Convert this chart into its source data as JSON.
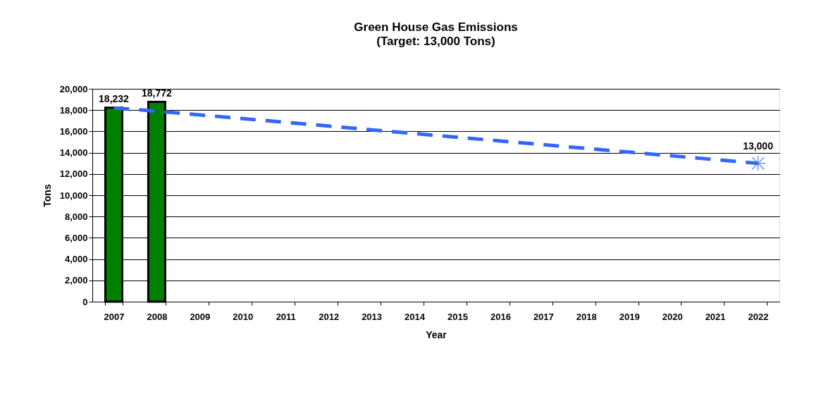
{
  "chart_data": {
    "type": "bar",
    "title": "Green House Gas Emissions",
    "subtitle": "(Target: 13,000 Tons)",
    "xlabel": "Year",
    "ylabel": "Tons",
    "categories": [
      "2007",
      "2008",
      "2009",
      "2010",
      "2011",
      "2012",
      "2013",
      "2014",
      "2015",
      "2016",
      "2017",
      "2018",
      "2019",
      "2020",
      "2021",
      "2022"
    ],
    "series": [
      {
        "color": "#008000",
        "values": [
          18232,
          18772,
          null,
          null,
          null,
          null,
          null,
          null,
          null,
          null,
          null,
          null,
          null,
          null,
          null,
          null
        ],
        "value_labels": [
          "18,232",
          "18,772",
          null,
          null,
          null,
          null,
          null,
          null,
          null,
          null,
          null,
          null,
          null,
          null,
          null,
          null
        ]
      },
      {
        "type": "line",
        "color": "#3366ff",
        "values": [
          18200,
          17900,
          17550,
          17200,
          16850,
          16500,
          16150,
          15800,
          15450,
          15100,
          14750,
          14400,
          14050,
          13700,
          13350,
          13000
        ],
        "line_style": "dashed"
      },
      {
        "type": "scatter",
        "color": "#3366ff",
        "values": [
          null,
          null,
          null,
          null,
          null,
          null,
          null,
          null,
          null,
          null,
          null,
          null,
          null,
          null,
          null,
          13000
        ],
        "marker": "cross",
        "value_labels": [
          null,
          null,
          null,
          null,
          null,
          null,
          null,
          null,
          null,
          null,
          null,
          null,
          null,
          null,
          null,
          "13,000"
        ]
      }
    ],
    "ylim": [
      0,
      20000
    ],
    "yticks": [
      {
        "value": 0,
        "label": "0"
      },
      {
        "value": 2000,
        "label": "2,000"
      },
      {
        "value": 4000,
        "label": "4,000"
      },
      {
        "value": 6000,
        "label": "6,000"
      },
      {
        "value": 8000,
        "label": "8,000"
      },
      {
        "value": 10000,
        "label": "10,000"
      },
      {
        "value": 12000,
        "label": "12,000"
      },
      {
        "value": 14000,
        "label": "14,000"
      },
      {
        "value": 16000,
        "label": "16,000"
      },
      {
        "value": 18000,
        "label": "18,000"
      },
      {
        "value": 20000,
        "label": "20,000"
      }
    ],
    "grid": "y"
  }
}
